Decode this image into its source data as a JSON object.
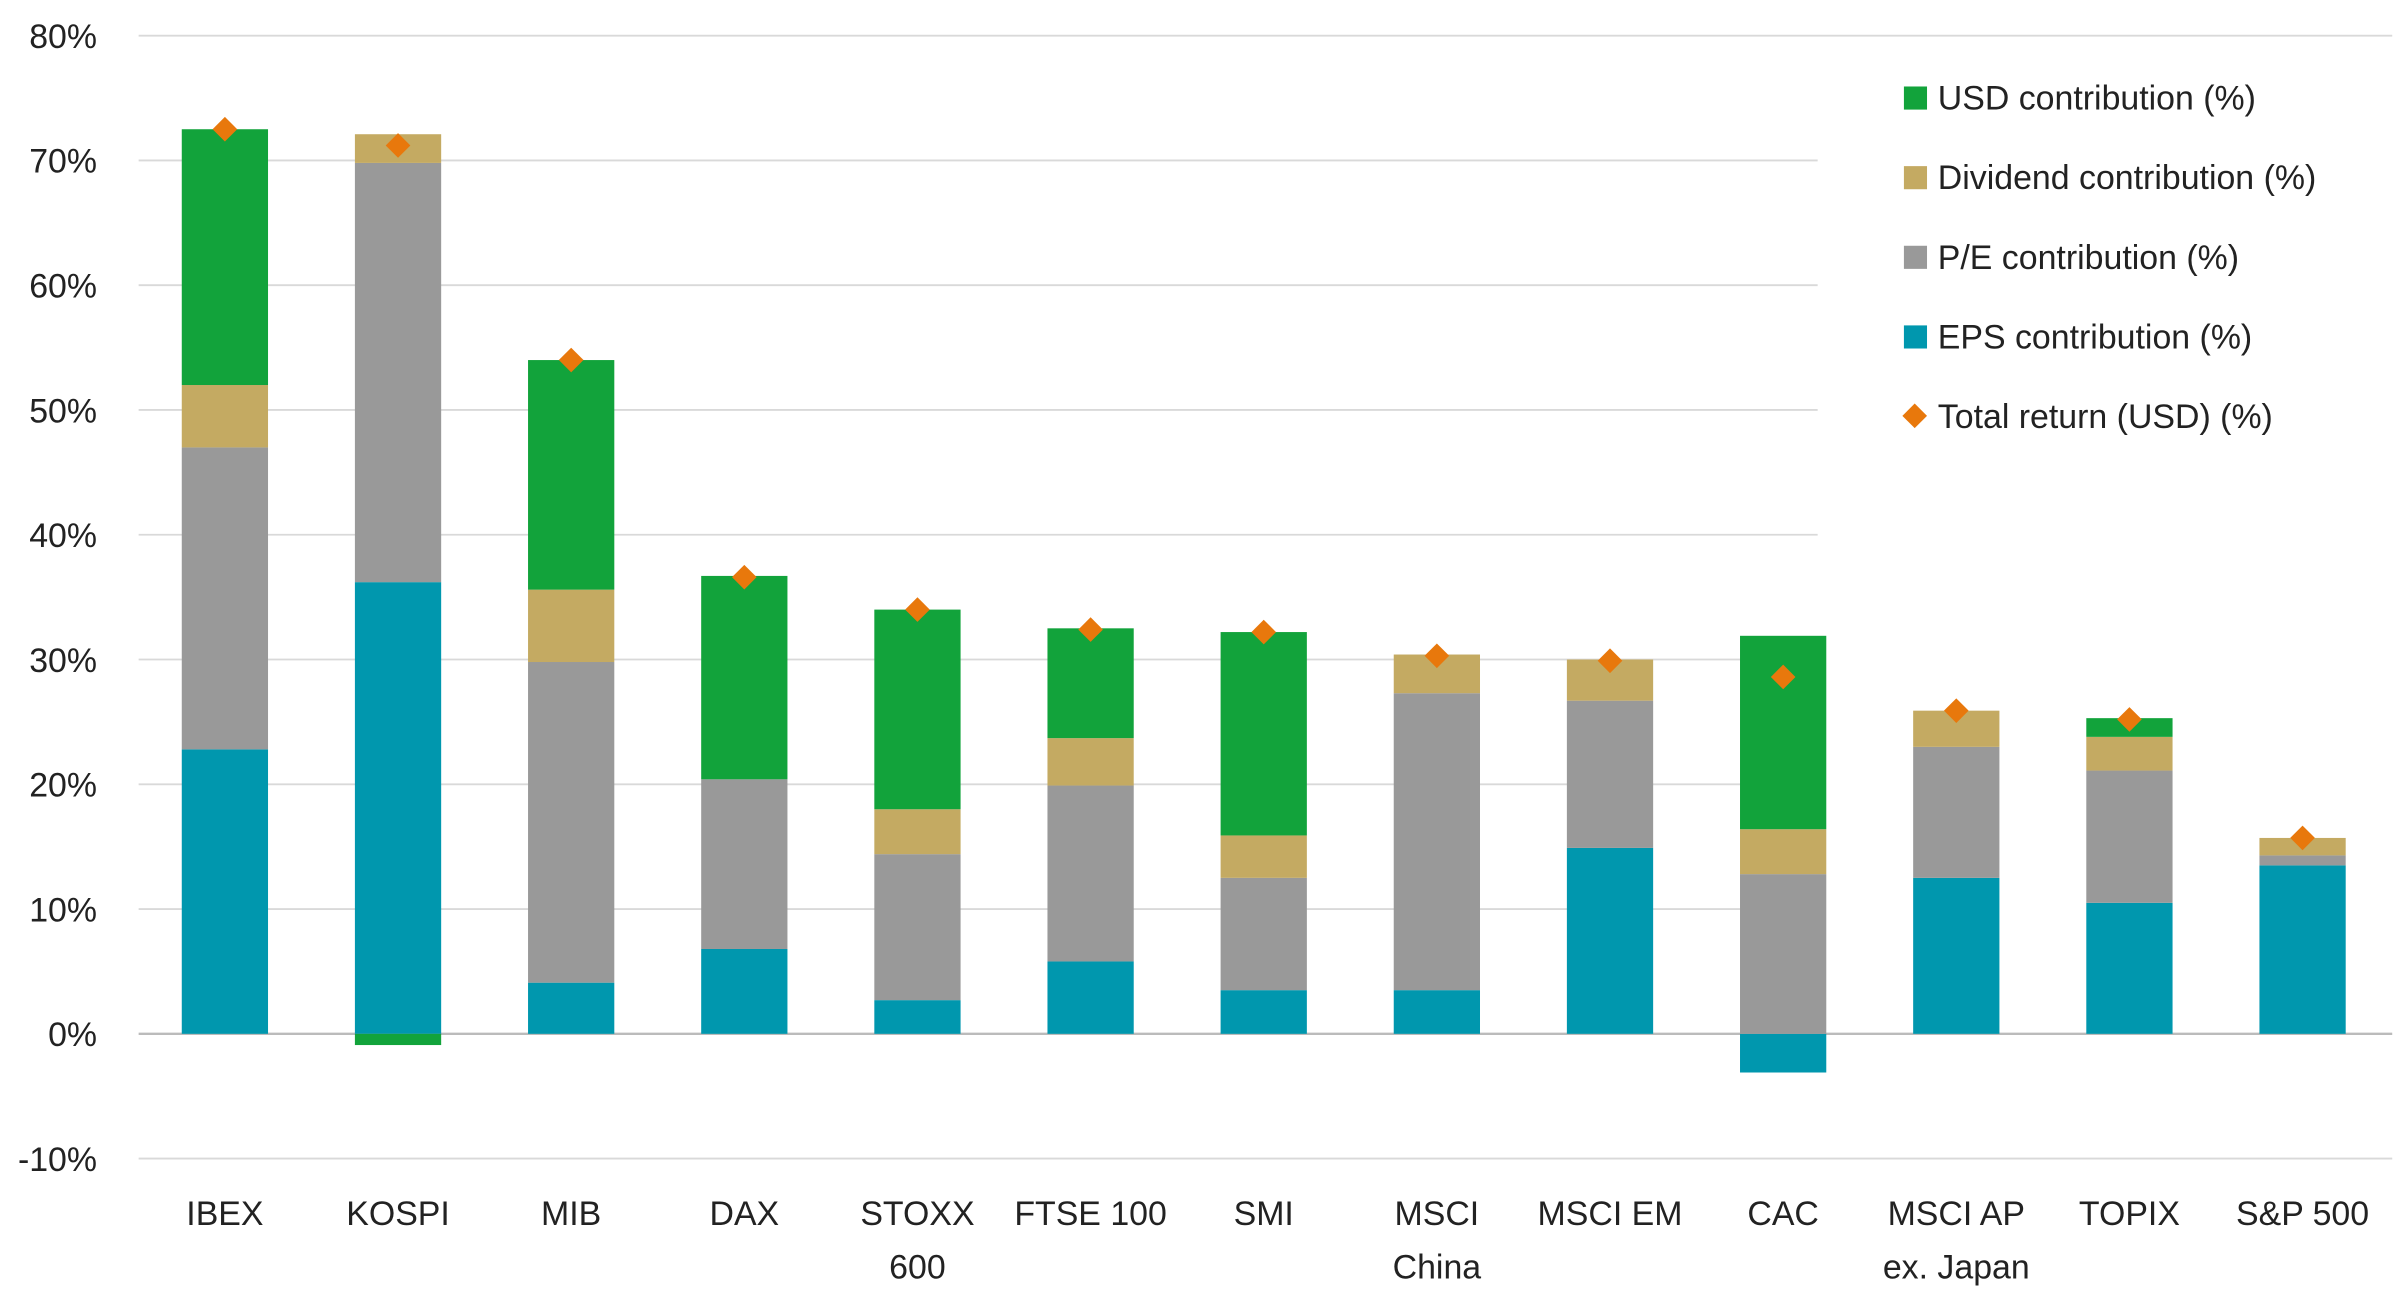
{
  "chart_data": {
    "type": "bar",
    "stacked": true,
    "title": "",
    "xlabel": "",
    "ylabel": "",
    "ylim": [
      -10,
      80
    ],
    "y_ticks": [
      "-10%",
      "0%",
      "10%",
      "20%",
      "30%",
      "40%",
      "50%",
      "60%",
      "70%",
      "80%"
    ],
    "grid": "horizontal",
    "legend_position": "top-right",
    "categories": [
      [
        "IBEX"
      ],
      [
        "KOSPI"
      ],
      [
        "MIB"
      ],
      [
        "DAX"
      ],
      [
        "STOXX",
        "600"
      ],
      [
        "FTSE 100"
      ],
      [
        "SMI"
      ],
      [
        "MSCI",
        "China"
      ],
      [
        "MSCI EM"
      ],
      [
        "CAC"
      ],
      [
        "MSCI AP",
        "ex. Japan"
      ],
      [
        "TOPIX"
      ],
      [
        "S&P 500"
      ]
    ],
    "series": [
      {
        "name": "EPS contribution (%)",
        "color": "#0097ae",
        "values": [
          22.8,
          36.2,
          4.1,
          6.8,
          2.7,
          5.8,
          3.5,
          3.5,
          14.9,
          -3.1,
          12.5,
          10.5,
          13.5
        ]
      },
      {
        "name": "P/E contribution (%)",
        "color": "#999999",
        "values": [
          24.2,
          33.6,
          25.7,
          13.6,
          11.7,
          14.1,
          9.0,
          23.8,
          11.8,
          12.8,
          10.5,
          10.6,
          0.8
        ]
      },
      {
        "name": "Dividend contribution (%)",
        "color": "#c4aa62",
        "values": [
          5.0,
          2.3,
          5.8,
          0.0,
          3.6,
          3.8,
          3.4,
          3.1,
          3.3,
          3.6,
          2.9,
          2.7,
          1.4
        ]
      },
      {
        "name": "USD contribution (%)",
        "color": "#12a33b",
        "values": [
          20.5,
          -0.9,
          18.4,
          16.3,
          16.0,
          8.8,
          16.3,
          0.0,
          0.0,
          15.5,
          0.0,
          1.5,
          0.0
        ]
      }
    ],
    "markers": {
      "name": "Total return (USD) (%)",
      "color": "#e8780c",
      "shape": "diamond",
      "values": [
        72.5,
        71.2,
        54.0,
        36.6,
        34.0,
        32.4,
        32.2,
        30.3,
        29.9,
        28.6,
        25.9,
        25.2,
        15.7
      ]
    },
    "legend": [
      "USD contribution (%)",
      "Dividend contribution (%)",
      "P/E contribution (%)",
      "EPS contribution (%)",
      "Total return (USD) (%)"
    ]
  }
}
